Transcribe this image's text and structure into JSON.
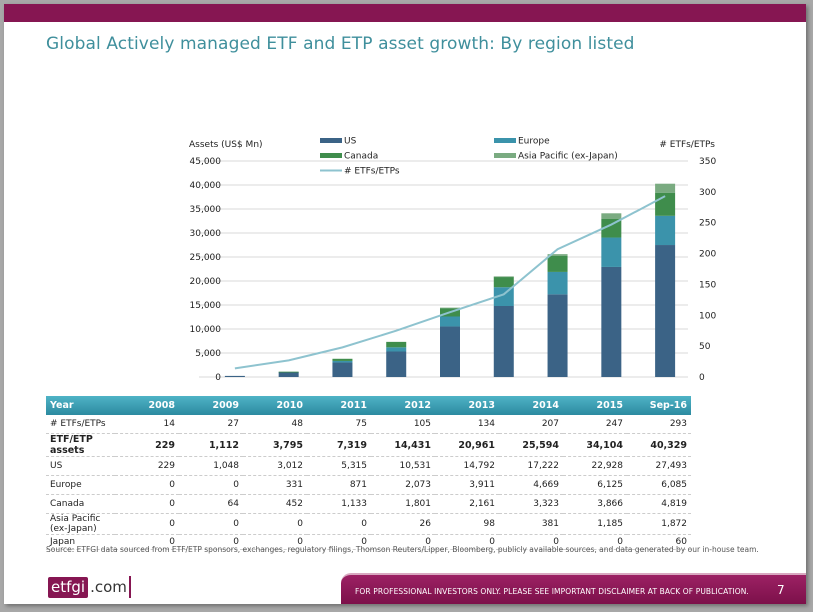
{
  "title": "Global Actively managed ETF and ETP asset growth: By region listed",
  "chart_data": {
    "type": "bar",
    "stacked": true,
    "categories": [
      "2008",
      "2009",
      "2010",
      "2011",
      "2012",
      "2013",
      "2014",
      "2015",
      "Sep-16"
    ],
    "series": [
      {
        "name": "US",
        "color": "#3b6386",
        "values": [
          229,
          1048,
          3012,
          5315,
          10531,
          14792,
          17222,
          22928,
          27493
        ]
      },
      {
        "name": "Europe",
        "color": "#3b93ab",
        "values": [
          0,
          0,
          331,
          871,
          2073,
          3911,
          4669,
          6125,
          6085
        ]
      },
      {
        "name": "Canada",
        "color": "#3f8d4c",
        "values": [
          0,
          64,
          452,
          1133,
          1801,
          2161,
          3323,
          3866,
          4819
        ]
      },
      {
        "name": "Asia Pacific (ex-Japan)",
        "color": "#7aab81",
        "values": [
          0,
          0,
          0,
          0,
          26,
          98,
          381,
          1185,
          1872
        ]
      }
    ],
    "line_series": {
      "name": "# ETFs/ETPs",
      "color": "#8ec3cf",
      "axis": "right",
      "values": [
        14,
        27,
        48,
        75,
        105,
        134,
        207,
        247,
        293
      ]
    },
    "ylabel": "Assets (US$ Mn)",
    "y2label": "# ETFs/ETPs",
    "ylim": [
      0,
      45000
    ],
    "y2lim": [
      0,
      350
    ],
    "yticks": [
      "0",
      "5,000",
      "10,000",
      "15,000",
      "20,000",
      "25,000",
      "30,000",
      "35,000",
      "40,000",
      "45,000"
    ],
    "y2ticks": [
      "0",
      "50",
      "100",
      "150",
      "200",
      "250",
      "300",
      "350"
    ],
    "grid": true,
    "legend_position": "top",
    "legend": [
      "US",
      "Europe",
      "Canada",
      "Asia Pacific (ex-Japan)",
      "# ETFs/ETPs"
    ]
  },
  "table": {
    "headers": [
      "Year",
      "2008",
      "2009",
      "2010",
      "2011",
      "2012",
      "2013",
      "2014",
      "2015",
      "Sep-16"
    ],
    "rows": [
      {
        "label": "# ETFs/ETPs",
        "bold": false,
        "values": [
          "14",
          "27",
          "48",
          "75",
          "105",
          "134",
          "207",
          "247",
          "293"
        ]
      },
      {
        "label": "ETF/ETP assets",
        "bold": true,
        "values": [
          "229",
          "1,112",
          "3,795",
          "7,319",
          "14,431",
          "20,961",
          "25,594",
          "34,104",
          "40,329"
        ]
      },
      {
        "label": "US",
        "bold": false,
        "values": [
          "229",
          "1,048",
          "3,012",
          "5,315",
          "10,531",
          "14,792",
          "17,222",
          "22,928",
          "27,493"
        ]
      },
      {
        "label": "Europe",
        "bold": false,
        "values": [
          "0",
          "0",
          "331",
          "871",
          "2,073",
          "3,911",
          "4,669",
          "6,125",
          "6,085"
        ]
      },
      {
        "label": "Canada",
        "bold": false,
        "values": [
          "0",
          "64",
          "452",
          "1,133",
          "1,801",
          "2,161",
          "3,323",
          "3,866",
          "4,819"
        ]
      },
      {
        "label": "Asia Pacific (ex-Japan)",
        "bold": false,
        "values": [
          "0",
          "0",
          "0",
          "0",
          "26",
          "98",
          "381",
          "1,185",
          "1,872"
        ]
      },
      {
        "label": "Japan",
        "bold": false,
        "values": [
          "0",
          "0",
          "0",
          "0",
          "0",
          "0",
          "0",
          "0",
          "60"
        ]
      }
    ]
  },
  "source": "Source: ETFGI data sourced from ETF/ETP sponsors, exchanges, regulatory filings, Thomson Reuters/Lipper, Bloomberg, publicly available sources, and data generated by our in-house team.",
  "logo": {
    "brand": "etfgi",
    "domain": ".com"
  },
  "footer": {
    "disclaimer": "FOR PROFESSIONAL INVESTORS ONLY. PLEASE SEE IMPORTANT DISCLAIMER AT BACK OF PUBLICATION.",
    "page_number": "7"
  },
  "colors": {
    "brand": "#861652",
    "title": "#3f8f9c",
    "table_header": "#3a9db3"
  }
}
